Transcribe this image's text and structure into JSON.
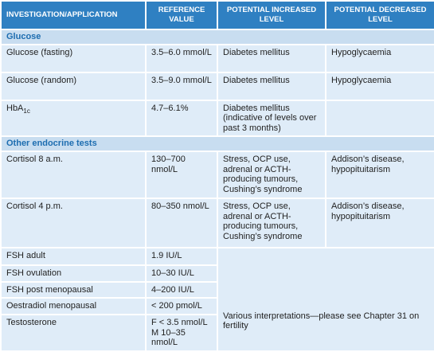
{
  "table": {
    "header": [
      "INVESTIGATION/APPLICATION",
      "REFERENCE VALUE",
      "POTENTIAL INCREASED LEVEL",
      "POTENTIAL DECREASED LEVEL"
    ],
    "sections": [
      {
        "title": "Glucose",
        "rows": [
          [
            "Glucose (fasting)",
            "3.5–6.0 mmol/L",
            "Diabetes mellitus",
            "Hypoglycaemia"
          ],
          [
            "Glucose (random)",
            "3.5–9.0 mmol/L",
            "Diabetes mellitus",
            "Hypoglycaemia"
          ],
          [
            {
              "text": "HbA",
              "subscript": "1c"
            },
            "4.7–6.1%",
            "Diabetes mellitus (indicative of levels over past 3 months)",
            null
          ]
        ]
      },
      {
        "title": "Other endocrine tests",
        "rows": [
          [
            "Cortisol 8 a.m.",
            "130–700 nmol/L",
            "Stress, OCP use, adrenal or ACTH-producing tumours, Cushing’s syndrome",
            "Addison’s disease, hypopituitarism"
          ],
          [
            "Cortisol 4 p.m.",
            "80–350 nmol/L",
            "Stress, OCP use, adrenal or ACTH-producing tumours, Cushing’s syndrome",
            "Addison’s disease, hypopituitarism"
          ],
          [
            "FSH adult",
            "1.9 IU/L"
          ],
          [
            "FSH ovulation",
            "10–30 IU/L"
          ],
          [
            "FSH post menopausal",
            "4–200 IU/L"
          ],
          [
            "Oestradiol menopausal",
            "< 200 pmol/L"
          ],
          [
            "Testosterone",
            "F < 3.5 nmol/L M 10–35 nmol/L"
          ]
        ],
        "shared_interpretation": "Various interpretations—please see Chapter 31 on fertility"
      }
    ]
  }
}
